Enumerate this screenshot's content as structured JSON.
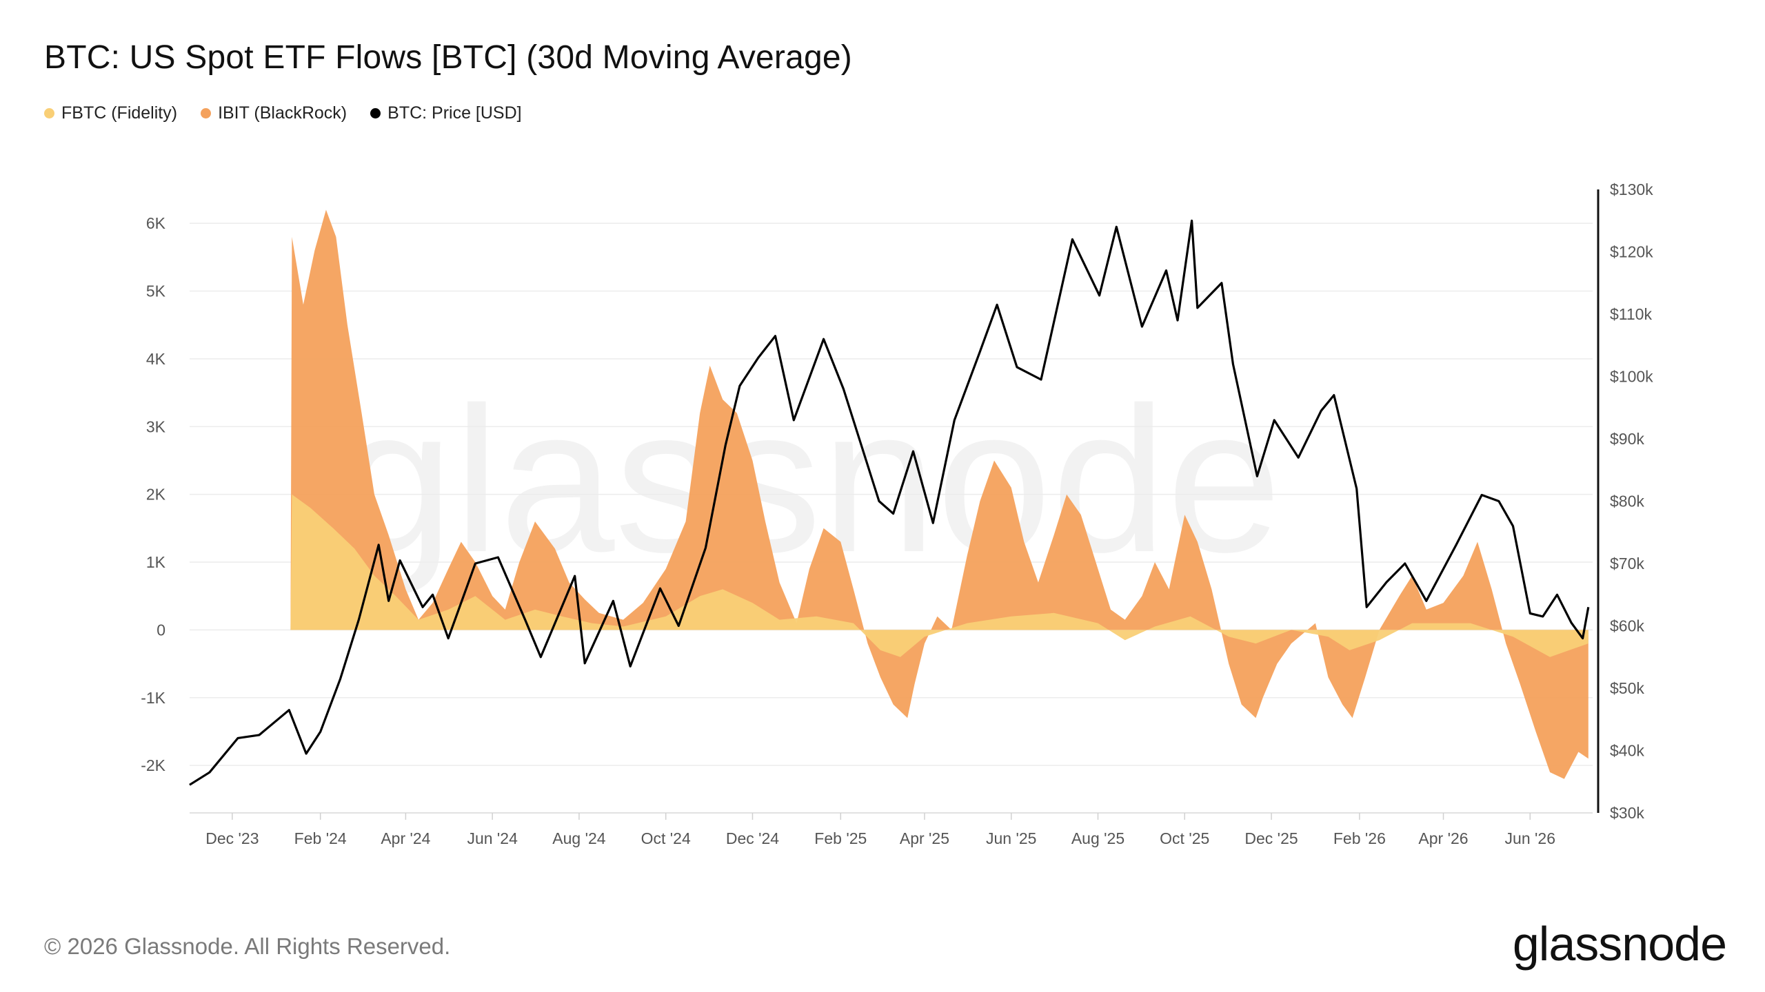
{
  "title": "BTC: US Spot ETF Flows [BTC] (30d Moving Average)",
  "legend": [
    {
      "label": "FBTC (Fidelity)",
      "color": "#f9cf76"
    },
    {
      "label": "IBIT (BlackRock)",
      "color": "#f4a15c"
    },
    {
      "label": "BTC: Price [USD]",
      "color": "#000000"
    }
  ],
  "watermark": "glassnode",
  "footer": "© 2026 Glassnode. All Rights Reserved.",
  "brand": "glassnode",
  "chart_data": {
    "type": "area",
    "x_range": [
      "2023-11-01",
      "2026-07-15"
    ],
    "x_ticks": [
      "Dec '23",
      "Feb '24",
      "Apr '24",
      "Jun '24",
      "Aug '24",
      "Oct '24",
      "Dec '24",
      "Feb '25",
      "Apr '25",
      "Jun '25",
      "Aug '25",
      "Oct '25",
      "Dec '25",
      "Feb '26",
      "Apr '26",
      "Jun '26"
    ],
    "x_tick_dates": [
      "2023-12-01",
      "2024-02-01",
      "2024-04-01",
      "2024-06-01",
      "2024-08-01",
      "2024-10-01",
      "2024-12-01",
      "2025-02-01",
      "2025-04-01",
      "2025-06-01",
      "2025-08-01",
      "2025-10-01",
      "2025-12-01",
      "2026-02-01",
      "2026-04-01",
      "2026-06-01"
    ],
    "y_left": {
      "range": [
        -2700,
        6500
      ],
      "ticks": [
        -2000,
        -1000,
        0,
        1000,
        2000,
        3000,
        4000,
        5000,
        6000
      ],
      "tick_labels": [
        "-2K",
        "-1K",
        "0",
        "1K",
        "2K",
        "3K",
        "4K",
        "5K",
        "6K"
      ]
    },
    "y_right": {
      "range": [
        30000,
        130000
      ],
      "ticks": [
        30000,
        40000,
        50000,
        60000,
        70000,
        80000,
        90000,
        100000,
        110000,
        120000,
        130000
      ],
      "tick_labels": [
        "$30k",
        "$40k",
        "$50k",
        "$60k",
        "$70k",
        "$80k",
        "$90k",
        "$100k",
        "$110k",
        "$120k",
        "$130k"
      ]
    },
    "grid": true,
    "legend_position": "top-left",
    "series": [
      {
        "name": "IBIT (BlackRock)",
        "axis": "left",
        "color": "#f4a15c",
        "points": [
          [
            "2024-01-11",
            0
          ],
          [
            "2024-01-12",
            5800
          ],
          [
            "2024-01-20",
            4800
          ],
          [
            "2024-01-28",
            5600
          ],
          [
            "2024-02-05",
            6200
          ],
          [
            "2024-02-12",
            5800
          ],
          [
            "2024-02-20",
            4500
          ],
          [
            "2024-03-01",
            3200
          ],
          [
            "2024-03-10",
            2000
          ],
          [
            "2024-03-20",
            1400
          ],
          [
            "2024-04-01",
            600
          ],
          [
            "2024-04-10",
            150
          ],
          [
            "2024-04-20",
            400
          ],
          [
            "2024-05-01",
            900
          ],
          [
            "2024-05-10",
            1300
          ],
          [
            "2024-05-20",
            1000
          ],
          [
            "2024-06-01",
            500
          ],
          [
            "2024-06-10",
            300
          ],
          [
            "2024-06-20",
            1000
          ],
          [
            "2024-07-01",
            1600
          ],
          [
            "2024-07-15",
            1200
          ],
          [
            "2024-07-25",
            700
          ],
          [
            "2024-08-05",
            450
          ],
          [
            "2024-08-15",
            250
          ],
          [
            "2024-09-01",
            150
          ],
          [
            "2024-09-15",
            400
          ],
          [
            "2024-10-01",
            900
          ],
          [
            "2024-10-15",
            1600
          ],
          [
            "2024-10-25",
            3200
          ],
          [
            "2024-11-01",
            3900
          ],
          [
            "2024-11-10",
            3400
          ],
          [
            "2024-11-20",
            3200
          ],
          [
            "2024-12-01",
            2500
          ],
          [
            "2024-12-10",
            1600
          ],
          [
            "2024-12-20",
            700
          ],
          [
            "2025-01-01",
            100
          ],
          [
            "2025-01-10",
            900
          ],
          [
            "2025-01-20",
            1500
          ],
          [
            "2025-02-01",
            1300
          ],
          [
            "2025-02-10",
            600
          ],
          [
            "2025-02-20",
            -200
          ],
          [
            "2025-03-01",
            -700
          ],
          [
            "2025-03-10",
            -1100
          ],
          [
            "2025-03-20",
            -1300
          ],
          [
            "2025-03-25",
            -800
          ],
          [
            "2025-04-01",
            -200
          ],
          [
            "2025-04-10",
            200
          ],
          [
            "2025-04-20",
            0
          ],
          [
            "2025-05-01",
            1100
          ],
          [
            "2025-05-10",
            1900
          ],
          [
            "2025-05-20",
            2500
          ],
          [
            "2025-06-01",
            2100
          ],
          [
            "2025-06-10",
            1300
          ],
          [
            "2025-06-20",
            700
          ],
          [
            "2025-07-01",
            1400
          ],
          [
            "2025-07-10",
            2000
          ],
          [
            "2025-07-20",
            1700
          ],
          [
            "2025-08-01",
            900
          ],
          [
            "2025-08-10",
            300
          ],
          [
            "2025-08-20",
            150
          ],
          [
            "2025-09-01",
            500
          ],
          [
            "2025-09-10",
            1000
          ],
          [
            "2025-09-20",
            600
          ],
          [
            "2025-10-01",
            1700
          ],
          [
            "2025-10-10",
            1300
          ],
          [
            "2025-10-20",
            600
          ],
          [
            "2025-11-01",
            -500
          ],
          [
            "2025-11-10",
            -1100
          ],
          [
            "2025-11-20",
            -1300
          ],
          [
            "2025-11-25",
            -1000
          ],
          [
            "2025-12-05",
            -500
          ],
          [
            "2025-12-15",
            -200
          ],
          [
            "2026-01-01",
            100
          ],
          [
            "2026-01-10",
            -700
          ],
          [
            "2026-01-20",
            -1100
          ],
          [
            "2026-01-27",
            -1300
          ],
          [
            "2026-02-05",
            -700
          ],
          [
            "2026-02-15",
            0
          ],
          [
            "2026-03-01",
            500
          ],
          [
            "2026-03-10",
            800
          ],
          [
            "2026-03-20",
            300
          ],
          [
            "2026-04-01",
            400
          ],
          [
            "2026-04-15",
            800
          ],
          [
            "2026-04-25",
            1300
          ],
          [
            "2026-05-05",
            600
          ],
          [
            "2026-05-15",
            -200
          ],
          [
            "2026-05-25",
            -800
          ],
          [
            "2026-06-05",
            -1500
          ],
          [
            "2026-06-15",
            -2100
          ],
          [
            "2026-06-25",
            -2200
          ],
          [
            "2026-07-05",
            -1800
          ],
          [
            "2026-07-12",
            -1900
          ]
        ]
      },
      {
        "name": "FBTC (Fidelity)",
        "axis": "left",
        "color": "#f9cf76",
        "points": [
          [
            "2024-01-11",
            0
          ],
          [
            "2024-01-12",
            2000
          ],
          [
            "2024-01-25",
            1800
          ],
          [
            "2024-02-10",
            1500
          ],
          [
            "2024-02-25",
            1200
          ],
          [
            "2024-03-10",
            800
          ],
          [
            "2024-03-25",
            500
          ],
          [
            "2024-04-10",
            150
          ],
          [
            "2024-05-01",
            300
          ],
          [
            "2024-05-20",
            500
          ],
          [
            "2024-06-10",
            150
          ],
          [
            "2024-07-01",
            300
          ],
          [
            "2024-07-20",
            200
          ],
          [
            "2024-08-10",
            100
          ],
          [
            "2024-09-01",
            50
          ],
          [
            "2024-10-01",
            200
          ],
          [
            "2024-10-25",
            500
          ],
          [
            "2024-11-10",
            600
          ],
          [
            "2024-12-01",
            400
          ],
          [
            "2024-12-20",
            150
          ],
          [
            "2025-01-15",
            200
          ],
          [
            "2025-02-10",
            100
          ],
          [
            "2025-03-01",
            -300
          ],
          [
            "2025-03-15",
            -400
          ],
          [
            "2025-04-01",
            -100
          ],
          [
            "2025-05-01",
            100
          ],
          [
            "2025-06-01",
            200
          ],
          [
            "2025-07-01",
            250
          ],
          [
            "2025-08-01",
            100
          ],
          [
            "2025-08-20",
            -150
          ],
          [
            "2025-09-10",
            50
          ],
          [
            "2025-10-05",
            200
          ],
          [
            "2025-11-01",
            -100
          ],
          [
            "2025-11-20",
            -200
          ],
          [
            "2025-12-15",
            0
          ],
          [
            "2026-01-10",
            -100
          ],
          [
            "2026-01-25",
            -300
          ],
          [
            "2026-02-15",
            -150
          ],
          [
            "2026-03-10",
            100
          ],
          [
            "2026-04-20",
            100
          ],
          [
            "2026-05-20",
            -100
          ],
          [
            "2026-06-15",
            -400
          ],
          [
            "2026-07-12",
            -200
          ]
        ]
      },
      {
        "name": "BTC: Price [USD]",
        "axis": "right",
        "color": "#000000",
        "points": [
          [
            "2023-11-01",
            34500
          ],
          [
            "2023-11-15",
            36500
          ],
          [
            "2023-12-05",
            42000
          ],
          [
            "2023-12-20",
            42500
          ],
          [
            "2024-01-10",
            46500
          ],
          [
            "2024-01-22",
            39500
          ],
          [
            "2024-02-01",
            43000
          ],
          [
            "2024-02-15",
            51500
          ],
          [
            "2024-02-28",
            61000
          ],
          [
            "2024-03-13",
            73000
          ],
          [
            "2024-03-20",
            64000
          ],
          [
            "2024-03-28",
            70500
          ],
          [
            "2024-04-13",
            63000
          ],
          [
            "2024-04-20",
            65000
          ],
          [
            "2024-05-01",
            58000
          ],
          [
            "2024-05-20",
            70000
          ],
          [
            "2024-06-05",
            71000
          ],
          [
            "2024-06-24",
            61000
          ],
          [
            "2024-07-05",
            55000
          ],
          [
            "2024-07-29",
            68000
          ],
          [
            "2024-08-05",
            54000
          ],
          [
            "2024-08-25",
            64000
          ],
          [
            "2024-09-06",
            53500
          ],
          [
            "2024-09-27",
            66000
          ],
          [
            "2024-10-10",
            60000
          ],
          [
            "2024-10-29",
            72500
          ],
          [
            "2024-11-12",
            89000
          ],
          [
            "2024-11-22",
            98500
          ],
          [
            "2024-12-05",
            103000
          ],
          [
            "2024-12-17",
            106500
          ],
          [
            "2024-12-30",
            93000
          ],
          [
            "2025-01-20",
            106000
          ],
          [
            "2025-02-03",
            98000
          ],
          [
            "2025-02-28",
            80000
          ],
          [
            "2025-03-10",
            78000
          ],
          [
            "2025-03-24",
            88000
          ],
          [
            "2025-04-07",
            76500
          ],
          [
            "2025-04-22",
            93000
          ],
          [
            "2025-05-10",
            104000
          ],
          [
            "2025-05-22",
            111500
          ],
          [
            "2025-06-05",
            101500
          ],
          [
            "2025-06-22",
            99500
          ],
          [
            "2025-07-14",
            122000
          ],
          [
            "2025-08-02",
            113000
          ],
          [
            "2025-08-14",
            124000
          ],
          [
            "2025-09-01",
            108000
          ],
          [
            "2025-09-18",
            117000
          ],
          [
            "2025-09-26",
            109000
          ],
          [
            "2025-10-06",
            125000
          ],
          [
            "2025-10-10",
            111000
          ],
          [
            "2025-10-27",
            115000
          ],
          [
            "2025-11-04",
            102000
          ],
          [
            "2025-11-21",
            84000
          ],
          [
            "2025-12-03",
            93000
          ],
          [
            "2025-12-20",
            87000
          ],
          [
            "2026-01-05",
            94500
          ],
          [
            "2026-01-14",
            97000
          ],
          [
            "2026-01-30",
            82000
          ],
          [
            "2026-02-06",
            63000
          ],
          [
            "2026-02-20",
            67000
          ],
          [
            "2026-03-05",
            70000
          ],
          [
            "2026-03-20",
            64000
          ],
          [
            "2026-04-10",
            73000
          ],
          [
            "2026-04-28",
            81000
          ],
          [
            "2026-05-10",
            80000
          ],
          [
            "2026-05-20",
            76000
          ],
          [
            "2026-06-01",
            62000
          ],
          [
            "2026-06-10",
            61500
          ],
          [
            "2026-06-20",
            65000
          ],
          [
            "2026-06-30",
            60500
          ],
          [
            "2026-07-08",
            58000
          ],
          [
            "2026-07-12",
            63000
          ]
        ]
      }
    ]
  }
}
